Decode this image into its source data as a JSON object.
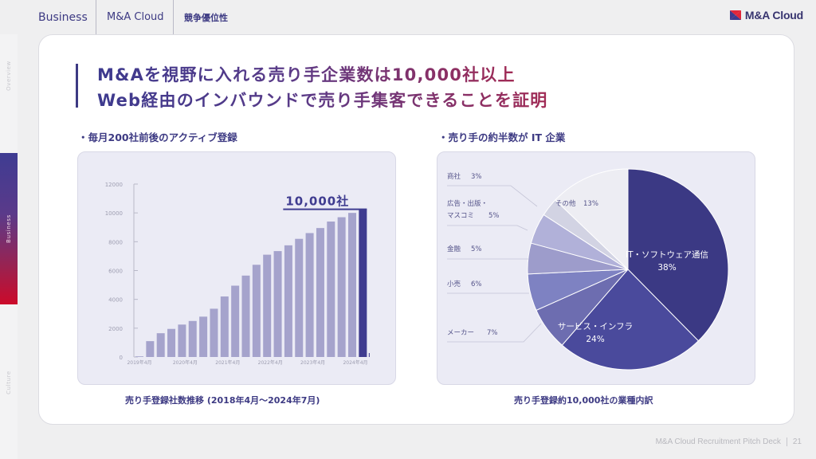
{
  "header": {
    "breadcrumbs": [
      "Business",
      "M&A Cloud",
      "競争優位性"
    ],
    "logo_text": "M&A Cloud"
  },
  "side_nav": {
    "items": [
      {
        "label": "Overview",
        "active": false
      },
      {
        "label": "Business",
        "active": true
      },
      {
        "label": "Culture",
        "active": false
      }
    ]
  },
  "title": {
    "line1": "M&Aを視野に入れる売り手企業数は10,000社以上",
    "line2": "Web経由のインバウンドで売り手集客できることを証明"
  },
  "left_section": {
    "subtitle": "・毎月200社前後のアクティブ登録",
    "caption": "売り手登録社数推移 (2018年4月〜2024年7月)"
  },
  "right_section": {
    "subtitle": "・売り手の約半数が IT 企業",
    "caption": "売り手登録約10,000社の業種内訳"
  },
  "chart_data": [
    {
      "type": "bar",
      "title": "売り手登録社数推移 (2018年4月〜2024年7月)",
      "annotation": "10,000社",
      "xlabel": "",
      "ylabel": "",
      "ylim": [
        0,
        12000
      ],
      "yticks": [
        0,
        2000,
        4000,
        6000,
        8000,
        10000,
        12000
      ],
      "xtick_labels": [
        "2019年4月",
        "2020年4月",
        "2021年4月",
        "2022年4月",
        "2023年4月",
        "2024年4月"
      ],
      "xtick_positions": [
        0,
        4,
        8,
        12,
        16,
        20
      ],
      "values": [
        30,
        1100,
        1650,
        1950,
        2250,
        2500,
        2800,
        3350,
        4200,
        4950,
        5650,
        6400,
        7100,
        7350,
        7750,
        8200,
        8600,
        8950,
        9400,
        9700,
        10000,
        10250
      ],
      "highlight_index": 21,
      "colors": {
        "bar": "#a5a3cc",
        "highlight": "#3f3c90",
        "axis": "#b9b9c8",
        "tick": "#9d9db0"
      }
    },
    {
      "type": "pie",
      "title": "売り手登録約10,000社の業種内訳",
      "slices": [
        {
          "label": "IT・ソフトウェア通信",
          "value": 38,
          "display": "38%",
          "color": "#3b3984"
        },
        {
          "label": "サービス・インフラ",
          "value": 24,
          "display": "24%",
          "color": "#4a4a9c"
        },
        {
          "label": "メーカー",
          "value": 7,
          "display": "7%",
          "color": "#6d6db0"
        },
        {
          "label": "小売",
          "value": 6,
          "display": "6%",
          "color": "#7e82c2"
        },
        {
          "label": "金融",
          "value": 5,
          "display": "5%",
          "color": "#9d9ccb"
        },
        {
          "label": "広告・出版・マスコミ",
          "value": 5,
          "display": "5%",
          "color": "#b1b1d9"
        },
        {
          "label": "商社",
          "value": 3,
          "display": "3%",
          "color": "#d2d3e3"
        },
        {
          "label": "その他",
          "value": 13,
          "display": "13%",
          "color": "#ededf3"
        }
      ]
    }
  ],
  "footer": {
    "deck_title": "M&A Cloud Recruitment Pitch Deck",
    "page_number": "21"
  }
}
